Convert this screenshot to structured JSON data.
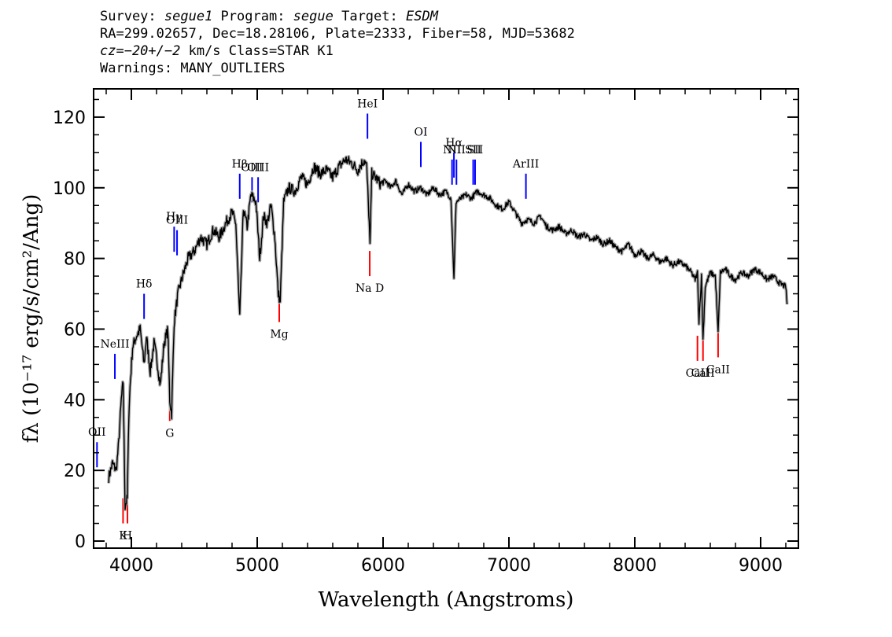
{
  "header": {
    "survey_prefix": "Survey: ",
    "survey": "segue1",
    "program_prefix": " Program: ",
    "program": "segue",
    "target_prefix": " Target: ",
    "target": "ESDM",
    "line2": "RA=299.02657, Dec=18.28106, Plate=2333, Fiber=58, MJD=53682",
    "cz_value": "cz=−20+/−2",
    "cz_rest": " km/s Class=STAR K1",
    "warnings": "Warnings: MANY_OUTLIERS"
  },
  "colors": {
    "emission": "#0000ff",
    "absorption": "#ff0000",
    "spectrum": "#000000",
    "error_band": "#b0b0b0"
  },
  "chart_data": {
    "type": "line",
    "xlabel": "Wavelength (Angstroms)",
    "ylabel": "fλ (10⁻¹⁷ erg/s/cm²/Ang)",
    "xlim": [
      3700,
      9300
    ],
    "ylim": [
      -2,
      128
    ],
    "xticks": [
      4000,
      5000,
      6000,
      7000,
      8000,
      9000
    ],
    "yticks": [
      0,
      20,
      40,
      60,
      80,
      100,
      120
    ],
    "grid": false,
    "series": [
      {
        "x": [
          3820,
          3850,
          3880,
          3900,
          3920,
          3935,
          3950,
          3968,
          3980,
          3990,
          4010,
          4040,
          4070,
          4101,
          4120,
          4150,
          4180,
          4200,
          4230,
          4260,
          4290,
          4305,
          4320,
          4340,
          4370,
          4400,
          4450,
          4500,
          4550,
          4600,
          4650,
          4700,
          4750,
          4800,
          4830,
          4861,
          4890,
          4920,
          4950,
          4990,
          5020,
          5050,
          5080,
          5110,
          5140,
          5167,
          5183,
          5210,
          5250,
          5300,
          5350,
          5400,
          5450,
          5500,
          5550,
          5600,
          5650,
          5700,
          5750,
          5800,
          5850,
          5870,
          5890,
          5896,
          5910,
          5940,
          5980,
          6020,
          6060,
          6100,
          6150,
          6200,
          6250,
          6300,
          6350,
          6400,
          6450,
          6500,
          6540,
          6563,
          6580,
          6620,
          6660,
          6700,
          6750,
          6800,
          6850,
          6900,
          6950,
          7000,
          7050,
          7100,
          7150,
          7200,
          7250,
          7300,
          7350,
          7400,
          7450,
          7500,
          7550,
          7600,
          7650,
          7700,
          7750,
          7800,
          7850,
          7900,
          7950,
          8000,
          8050,
          8100,
          8150,
          8200,
          8250,
          8300,
          8350,
          8400,
          8450,
          8480,
          8498,
          8510,
          8530,
          8542,
          8560,
          8600,
          8640,
          8662,
          8680,
          8720,
          8760,
          8800,
          8850,
          8900,
          8950,
          9000,
          9050,
          9100,
          9150,
          9200,
          9210
        ],
        "y": [
          18,
          22,
          20,
          28,
          40,
          45,
          10,
          12,
          36,
          44,
          55,
          58,
          60,
          50,
          58,
          48,
          56,
          52,
          44,
          56,
          60,
          40,
          36,
          62,
          70,
          74,
          80,
          82,
          86,
          84,
          88,
          86,
          90,
          93,
          90,
          63,
          94,
          89,
          98,
          96,
          80,
          92,
          90,
          95,
          86,
          70,
          68,
          96,
          100,
          99,
          103,
          101,
          106,
          104,
          105,
          103,
          106,
          108,
          107,
          105,
          108,
          106,
          90,
          83,
          104,
          103,
          101,
          102,
          100,
          102,
          98,
          101,
          99,
          100,
          98,
          100,
          98,
          99,
          97,
          74,
          96,
          97,
          98,
          97,
          99,
          98,
          97,
          95,
          94,
          96,
          93,
          90,
          91,
          90,
          92,
          89,
          88,
          89,
          87,
          88,
          86,
          87,
          85,
          86,
          84,
          85,
          83,
          82,
          84,
          81,
          82,
          80,
          81,
          79,
          80,
          78,
          79,
          78,
          76,
          74,
          76,
          62,
          75,
          57,
          72,
          76,
          75,
          59,
          76,
          77,
          75,
          74,
          76,
          75,
          77,
          76,
          74,
          75,
          73,
          72,
          67
        ]
      }
    ],
    "emission_lines": [
      {
        "label": "OII",
        "wave": 3727,
        "y": 28
      },
      {
        "label": "NeIII",
        "wave": 3869,
        "y": 53
      },
      {
        "label": "Hδ",
        "wave": 4101,
        "y": 70
      },
      {
        "label": "Hγ",
        "wave": 4340,
        "y": 89
      },
      {
        "label": "OIII",
        "wave": 4363,
        "y": 88
      },
      {
        "label": "Hβ",
        "wave": 4861,
        "y": 104
      },
      {
        "label": "OIII",
        "wave": 4959,
        "y": 103
      },
      {
        "label": "OIII",
        "wave": 5007,
        "y": 103
      },
      {
        "label": "HeI",
        "wave": 5876,
        "y": 121
      },
      {
        "label": "OI",
        "wave": 6300,
        "y": 113
      },
      {
        "label": "NII",
        "wave": 6548,
        "y": 108
      },
      {
        "label": "Hα",
        "wave": 6563,
        "y": 110
      },
      {
        "label": "NII",
        "wave": 6583,
        "y": 108
      },
      {
        "label": "SII",
        "wave": 6716,
        "y": 108
      },
      {
        "label": "SII",
        "wave": 6731,
        "y": 108
      },
      {
        "label": "ArIII",
        "wave": 7135,
        "y": 104
      }
    ],
    "absorption_lines": [
      {
        "label": "K",
        "wave": 3934,
        "y": 5
      },
      {
        "label": "H",
        "wave": 3969,
        "y": 5
      },
      {
        "label": "G",
        "wave": 4305,
        "y": 34
      },
      {
        "label": "Mg",
        "wave": 5175,
        "y": 62
      },
      {
        "label": "Na D",
        "wave": 5894,
        "y": 75
      },
      {
        "label": "CaII",
        "wave": 8498,
        "y": 51
      },
      {
        "label": "CaII",
        "wave": 8542,
        "y": 51
      },
      {
        "label": "CaII",
        "wave": 8662,
        "y": 52
      }
    ]
  }
}
